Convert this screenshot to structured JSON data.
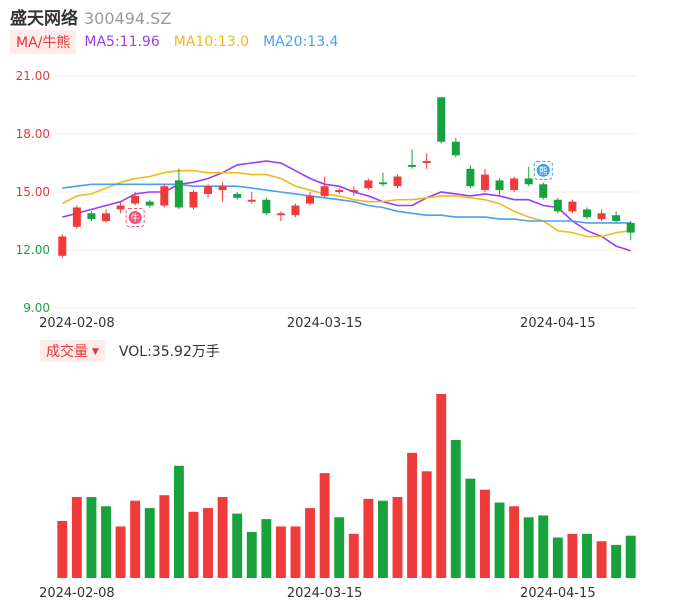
{
  "header": {
    "name": "盛天网络",
    "code": "300494.SZ"
  },
  "ma_legend": {
    "tag": "MA/牛熊",
    "ma5": "MA5:11.96",
    "ma10": "MA10:13.0",
    "ma20": "MA20:13.4"
  },
  "volume_legend": {
    "tag": "成交量",
    "text": "VOL:35.92万手"
  },
  "colors": {
    "up": "#f03b3b",
    "down": "#17a23e",
    "ma5": "#9b3ef0",
    "ma10": "#f2b91f",
    "ma20": "#4a9ff0"
  },
  "markers": [
    {
      "icon": "niu-marker-icon",
      "label": "牛",
      "index": 5
    },
    {
      "icon": "xiong-marker-icon",
      "label": "熊",
      "index": 33
    }
  ],
  "chart_data": [
    {
      "type": "candlestick",
      "title": "",
      "ylim": [
        9.0,
        21.0
      ],
      "yticks": [
        "21.00",
        "18.00",
        "15.00",
        "12.00",
        "9.00"
      ],
      "xticks": [
        {
          "label": "2024-02-08",
          "index": 1
        },
        {
          "label": "2024-03-15",
          "index": 18
        },
        {
          "label": "2024-04-15",
          "index": 34
        }
      ],
      "candles": [
        {
          "o": 11.7,
          "c": 12.7,
          "h": 12.8,
          "l": 11.6
        },
        {
          "o": 13.2,
          "c": 14.2,
          "h": 14.3,
          "l": 13.1
        },
        {
          "o": 13.9,
          "c": 13.6,
          "h": 14.0,
          "l": 13.5
        },
        {
          "o": 13.5,
          "c": 13.9,
          "h": 14.1,
          "l": 13.4
        },
        {
          "o": 14.1,
          "c": 14.3,
          "h": 14.5,
          "l": 13.9
        },
        {
          "o": 14.4,
          "c": 14.8,
          "h": 15.0,
          "l": 14.3
        },
        {
          "o": 14.5,
          "c": 14.3,
          "h": 14.6,
          "l": 14.2
        },
        {
          "o": 14.3,
          "c": 15.3,
          "h": 15.4,
          "l": 14.2
        },
        {
          "o": 15.6,
          "c": 14.2,
          "h": 16.2,
          "l": 14.1
        },
        {
          "o": 14.2,
          "c": 15.0,
          "h": 15.1,
          "l": 14.1
        },
        {
          "o": 14.9,
          "c": 15.3,
          "h": 15.4,
          "l": 14.7
        },
        {
          "o": 15.1,
          "c": 15.3,
          "h": 15.5,
          "l": 14.5
        },
        {
          "o": 14.9,
          "c": 14.7,
          "h": 15.0,
          "l": 14.6
        },
        {
          "o": 14.5,
          "c": 14.6,
          "h": 15.0,
          "l": 14.4
        },
        {
          "o": 14.6,
          "c": 13.9,
          "h": 14.7,
          "l": 13.8
        },
        {
          "o": 13.8,
          "c": 13.9,
          "h": 14.0,
          "l": 13.5
        },
        {
          "o": 13.8,
          "c": 14.3,
          "h": 14.4,
          "l": 13.7
        },
        {
          "o": 14.4,
          "c": 14.8,
          "h": 15.0,
          "l": 14.3
        },
        {
          "o": 14.8,
          "c": 15.3,
          "h": 15.8,
          "l": 14.7
        },
        {
          "o": 15.0,
          "c": 15.1,
          "h": 15.2,
          "l": 14.9
        },
        {
          "o": 15.0,
          "c": 15.1,
          "h": 15.3,
          "l": 14.8
        },
        {
          "o": 15.2,
          "c": 15.6,
          "h": 15.7,
          "l": 15.1
        },
        {
          "o": 15.5,
          "c": 15.4,
          "h": 16.0,
          "l": 15.3
        },
        {
          "o": 15.3,
          "c": 15.8,
          "h": 15.9,
          "l": 15.2
        },
        {
          "o": 16.4,
          "c": 16.3,
          "h": 17.2,
          "l": 16.2
        },
        {
          "o": 16.5,
          "c": 16.6,
          "h": 17.0,
          "l": 16.2
        },
        {
          "o": 19.9,
          "c": 17.6,
          "h": 19.9,
          "l": 17.5
        },
        {
          "o": 17.6,
          "c": 16.9,
          "h": 17.8,
          "l": 16.8
        },
        {
          "o": 16.2,
          "c": 15.3,
          "h": 16.4,
          "l": 15.2
        },
        {
          "o": 15.1,
          "c": 15.9,
          "h": 16.2,
          "l": 15.0
        },
        {
          "o": 15.6,
          "c": 15.1,
          "h": 15.7,
          "l": 14.8
        },
        {
          "o": 15.1,
          "c": 15.7,
          "h": 15.8,
          "l": 15.0
        },
        {
          "o": 15.7,
          "c": 15.4,
          "h": 16.3,
          "l": 15.3
        },
        {
          "o": 15.4,
          "c": 14.7,
          "h": 15.5,
          "l": 14.6
        },
        {
          "o": 14.6,
          "c": 14.0,
          "h": 14.7,
          "l": 13.9
        },
        {
          "o": 14.0,
          "c": 14.5,
          "h": 14.6,
          "l": 13.9
        },
        {
          "o": 14.1,
          "c": 13.7,
          "h": 14.2,
          "l": 13.6
        },
        {
          "o": 13.6,
          "c": 13.9,
          "h": 14.1,
          "l": 13.5
        },
        {
          "o": 13.8,
          "c": 13.5,
          "h": 14.0,
          "l": 13.4
        },
        {
          "o": 13.4,
          "c": 12.9,
          "h": 13.5,
          "l": 12.5
        }
      ],
      "series": [
        {
          "name": "MA5",
          "values": [
            13.7,
            13.9,
            14.1,
            14.3,
            14.5,
            14.9,
            15.0,
            15.0,
            15.4,
            15.5,
            15.7,
            16.0,
            16.4,
            16.5,
            16.6,
            16.5,
            16.1,
            15.7,
            15.4,
            15.3,
            15.0,
            14.8,
            14.5,
            14.3,
            14.3,
            14.7,
            15.0,
            14.9,
            14.8,
            14.9,
            14.8,
            14.6,
            14.6,
            14.3,
            14.2,
            13.5,
            13.0,
            12.7,
            12.2,
            11.96
          ]
        },
        {
          "name": "MA10",
          "values": [
            14.4,
            14.8,
            14.9,
            15.2,
            15.5,
            15.7,
            15.8,
            16.0,
            16.1,
            16.1,
            16.0,
            16.0,
            16.0,
            15.9,
            15.9,
            15.7,
            15.3,
            15.1,
            14.9,
            14.8,
            14.6,
            14.5,
            14.5,
            14.6,
            14.6,
            14.7,
            14.8,
            14.8,
            14.7,
            14.6,
            14.4,
            14.0,
            13.7,
            13.5,
            13.0,
            12.9,
            12.7,
            12.7,
            12.9,
            13.0
          ]
        },
        {
          "name": "MA20",
          "values": [
            15.2,
            15.3,
            15.4,
            15.4,
            15.4,
            15.4,
            15.4,
            15.4,
            15.4,
            15.3,
            15.3,
            15.3,
            15.3,
            15.2,
            15.1,
            15.0,
            14.9,
            14.8,
            14.7,
            14.6,
            14.5,
            14.3,
            14.2,
            14.0,
            13.9,
            13.8,
            13.8,
            13.7,
            13.7,
            13.7,
            13.6,
            13.6,
            13.5,
            13.5,
            13.5,
            13.5,
            13.4,
            13.4,
            13.4,
            13.4
          ]
        }
      ]
    },
    {
      "type": "bar",
      "title": "成交量",
      "ylim": [
        0,
        100
      ],
      "values": [
        31,
        44,
        44,
        39,
        28,
        42,
        38,
        45,
        61,
        36,
        38,
        44,
        35,
        25,
        32,
        28,
        28,
        38,
        57,
        33,
        24,
        43,
        42,
        44,
        68,
        58,
        100,
        75,
        54,
        48,
        41,
        39,
        33,
        34,
        22,
        24,
        24,
        20,
        18,
        23
      ],
      "up": [
        true,
        true,
        false,
        false,
        true,
        true,
        false,
        true,
        false,
        true,
        true,
        true,
        false,
        false,
        false,
        true,
        true,
        true,
        true,
        false,
        true,
        true,
        false,
        true,
        true,
        true,
        true,
        false,
        false,
        true,
        false,
        true,
        false,
        false,
        false,
        true,
        false,
        true,
        false,
        false
      ]
    }
  ]
}
